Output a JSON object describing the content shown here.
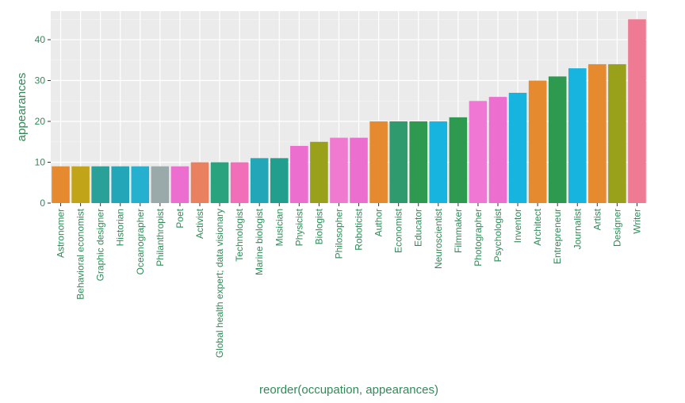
{
  "chart_data": {
    "type": "bar",
    "title": "",
    "xlabel": "reorder(occupation, appearances)",
    "ylabel": "appearances",
    "ylim": [
      0,
      47
    ],
    "yticks": [
      0,
      10,
      20,
      30,
      40
    ],
    "grid": true,
    "legend": "none",
    "panel_background": "#ebebeb",
    "categories": [
      "Astronomer",
      "Behavioral economist",
      "Graphic designer",
      "Historian",
      "Oceanographer",
      "Philanthropist",
      "Poet",
      "Activist",
      "Global health expert; data visionary",
      "Technologist",
      "Marine biologist",
      "Musician",
      "Physicist",
      "Biologist",
      "Philosopher",
      "Roboticist",
      "Author",
      "Economist",
      "Educator",
      "Neuroscientist",
      "Filmmaker",
      "Photographer",
      "Psychologist",
      "Inventor",
      "Architect",
      "Entrepreneur",
      "Journalist",
      "Artist",
      "Designer",
      "Writer"
    ],
    "values": [
      9,
      9,
      9,
      9,
      9,
      9,
      9,
      10,
      10,
      10,
      11,
      11,
      14,
      15,
      16,
      16,
      20,
      20,
      20,
      20,
      21,
      25,
      26,
      27,
      30,
      31,
      33,
      34,
      34,
      45
    ],
    "colors": [
      "#e58a2e",
      "#c2a418",
      "#2aa198",
      "#22a6b8",
      "#25b0cf",
      "#9aa9aa",
      "#ec6fd0",
      "#e9805f",
      "#28a37e",
      "#f06fb8",
      "#22a6b8",
      "#229f8c",
      "#ec6fd0",
      "#99a019",
      "#f07ad0",
      "#ec6fd0",
      "#e58a2e",
      "#2e9a6e",
      "#2e9a50",
      "#18b4e0",
      "#2e9a50",
      "#f078d4",
      "#ec6fd0",
      "#18b4e0",
      "#e58a2e",
      "#2e9a50",
      "#18b4e0",
      "#e58a2e",
      "#99a019",
      "#ef7a94"
    ]
  }
}
